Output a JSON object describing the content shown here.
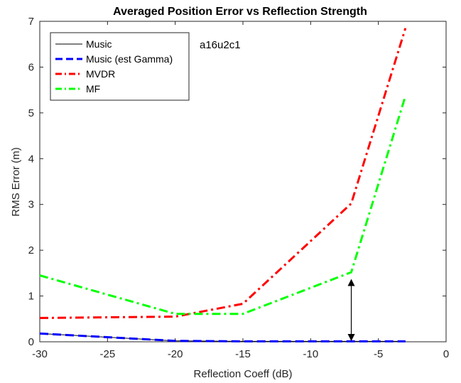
{
  "chart_data": {
    "type": "line",
    "title": "Averaged Position Error vs Reflection Strength",
    "xlabel": "Reflection Coeff (dB)",
    "ylabel": "RMS Error (m)",
    "xlim": [
      -30,
      0
    ],
    "ylim": [
      0,
      7
    ],
    "xticks": [
      -30,
      -25,
      -20,
      -15,
      -10,
      -5,
      0
    ],
    "yticks": [
      0,
      1,
      2,
      3,
      4,
      5,
      6,
      7
    ],
    "grid": false,
    "legend_position": "top-left",
    "annotation": "a16u2c1",
    "series": [
      {
        "name": "Music",
        "color": "#000000",
        "style": "solid",
        "x": [
          -30,
          -20,
          -15,
          -7,
          -3
        ],
        "y": [
          0.18,
          0.02,
          0.01,
          0.01,
          0.01
        ]
      },
      {
        "name": "Music (est Gamma)",
        "color": "#0000ff",
        "style": "dashed",
        "x": [
          -30,
          -20,
          -15,
          -7,
          -3
        ],
        "y": [
          0.18,
          0.02,
          0.01,
          0.01,
          0.01
        ]
      },
      {
        "name": "MVDR",
        "color": "#ff0000",
        "style": "dashdot",
        "x": [
          -30,
          -20,
          -15,
          -7,
          -3
        ],
        "y": [
          0.52,
          0.55,
          0.83,
          3.02,
          6.85
        ]
      },
      {
        "name": "MF",
        "color": "#00ff00",
        "style": "dashdot",
        "x": [
          -30,
          -20,
          -15,
          -7,
          -3
        ],
        "y": [
          1.45,
          0.61,
          0.61,
          1.52,
          5.37
        ]
      }
    ],
    "double_arrow": {
      "x": -7,
      "y_from": 0.0,
      "y_to": 1.45
    }
  }
}
